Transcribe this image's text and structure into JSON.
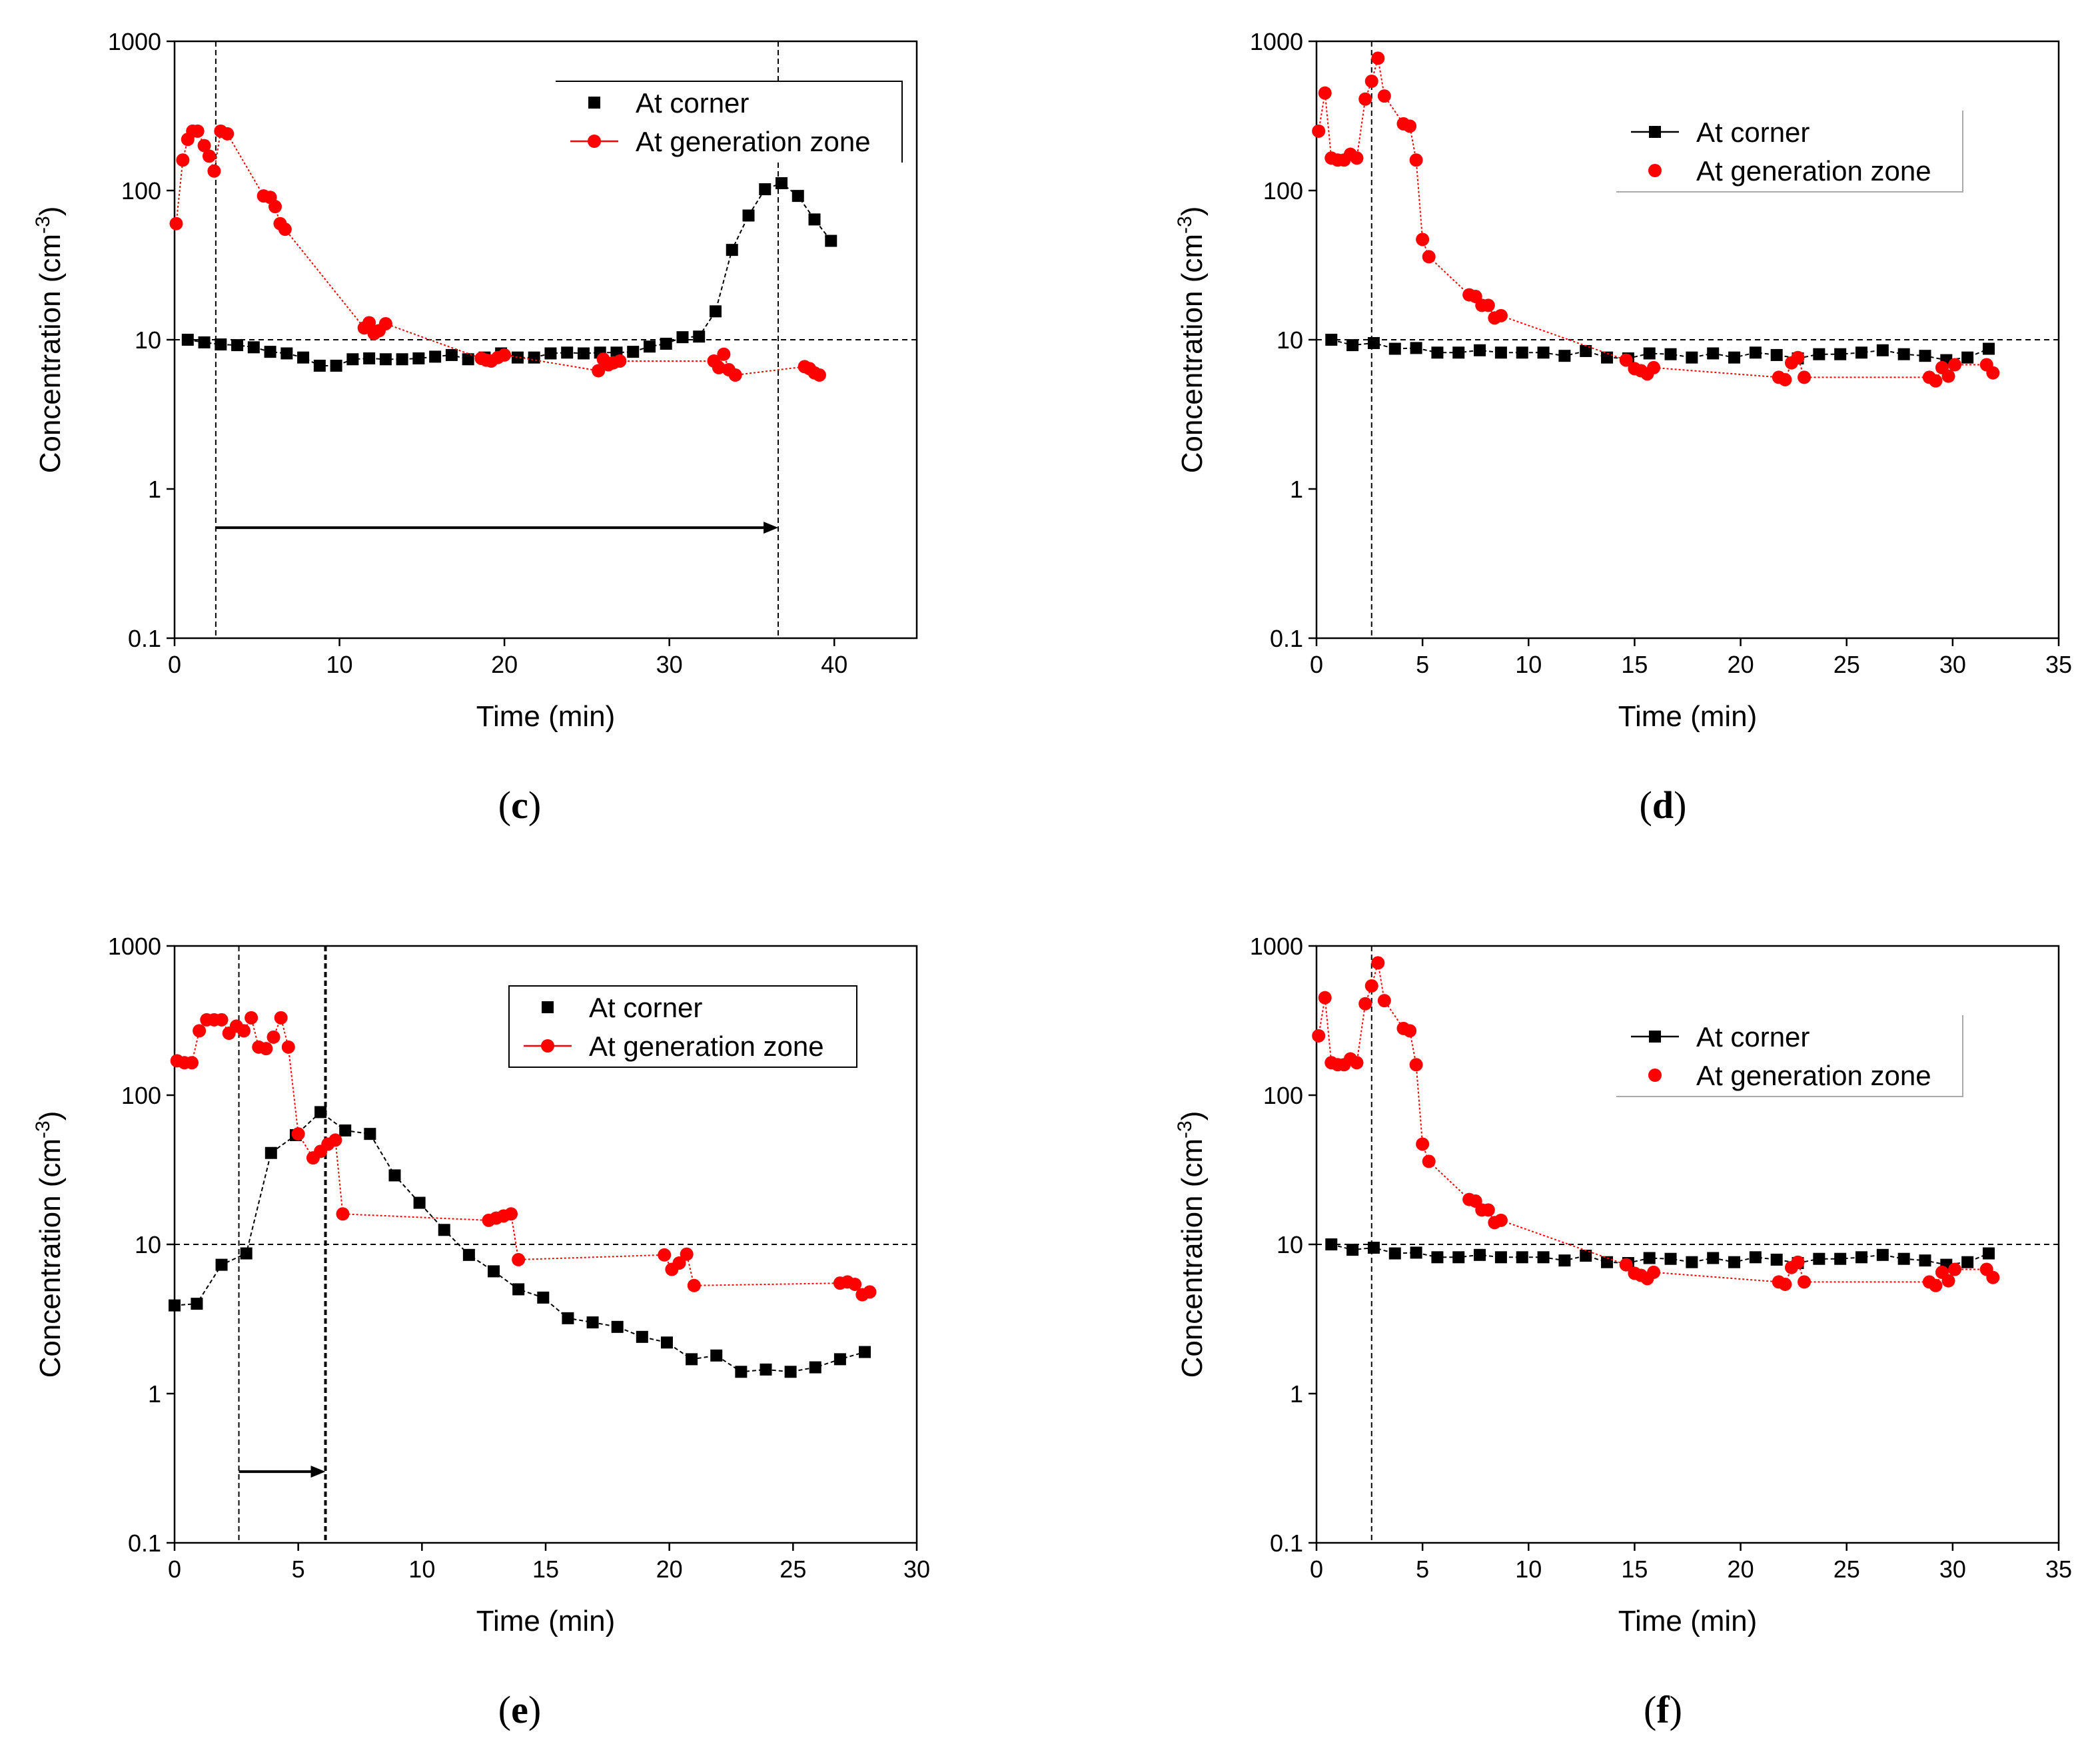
{
  "chart_data": [
    {
      "panel": "c",
      "caption": {
        "open": "(",
        "letter": "c",
        "close": ")"
      },
      "type": "scatter",
      "xlabel": "Time (min)",
      "ylabel": "Concentration (cm",
      "ylabel_sup": "-3",
      "ylabel_close": ")",
      "xlim": [
        0,
        45
      ],
      "ylim": [
        0.1,
        1000
      ],
      "yscale": "log",
      "xticks": [
        0,
        10,
        20,
        30,
        40
      ],
      "yticks": [
        0.1,
        1,
        10,
        100,
        1000
      ],
      "ytick_labels": [
        "0.1",
        "1",
        "10",
        "100",
        "1000"
      ],
      "hline": 10,
      "vlines": [
        2.5,
        36.6
      ],
      "arrow": {
        "x0": 2.5,
        "x1": 36.6,
        "y": 0.55
      },
      "legend": {
        "position": "top-right"
      },
      "series": [
        {
          "name": "At corner",
          "color": "#000000",
          "marker": "square",
          "line": "dash",
          "legend_line": false,
          "x": [
            0.8,
            1.8,
            2.8,
            3.8,
            4.8,
            5.8,
            6.8,
            7.8,
            8.8,
            9.8,
            10.8,
            11.8,
            12.8,
            13.8,
            14.8,
            15.8,
            16.8,
            17.8,
            18.8,
            19.8,
            20.8,
            21.8,
            22.8,
            23.8,
            24.8,
            25.8,
            26.8,
            27.8,
            28.8,
            29.8,
            30.8,
            31.8,
            32.8,
            33.8,
            34.8,
            35.8,
            36.8,
            37.8,
            38.8,
            39.8
          ],
          "y": [
            10,
            9.6,
            9.3,
            9.2,
            8.9,
            8.3,
            8.1,
            7.6,
            6.7,
            6.7,
            7.4,
            7.5,
            7.4,
            7.4,
            7.5,
            7.7,
            7.9,
            7.4,
            7.6,
            8.1,
            7.6,
            7.6,
            8.1,
            8.2,
            8.1,
            8.2,
            8.2,
            8.3,
            9.0,
            9.4,
            10.4,
            10.5,
            15.5,
            40,
            68,
            102,
            112,
            92,
            64,
            46
          ]
        },
        {
          "name": "At generation zone",
          "color": "#ff0000",
          "marker": "circle",
          "line": "dot",
          "legend_line": true,
          "x": [
            0.1,
            0.5,
            0.8,
            1.1,
            1.4,
            1.8,
            2.1,
            2.4,
            2.8,
            3.2,
            5.4,
            5.8,
            6.1,
            6.4,
            6.7,
            11.5,
            11.8,
            12.1,
            12.4,
            12.8,
            18.6,
            18.9,
            19.2,
            19.6,
            20.0,
            25.7,
            26.0,
            26.3,
            26.6,
            27.0,
            32.7,
            33.0,
            33.3,
            33.6,
            34.0,
            38.2,
            38.5,
            38.8,
            39.1
          ],
          "y": [
            60,
            160,
            220,
            250,
            250,
            200,
            170,
            135,
            250,
            240,
            92,
            90,
            78,
            60,
            55,
            12.0,
            13.0,
            11.0,
            11.5,
            12.8,
            7.5,
            7.3,
            7.2,
            7.6,
            7.9,
            6.2,
            7.4,
            6.8,
            7.0,
            7.2,
            7.2,
            6.5,
            8.0,
            6.3,
            5.8,
            6.6,
            6.4,
            6.0,
            5.8
          ]
        }
      ]
    },
    {
      "panel": "d",
      "caption": {
        "open": "(",
        "letter": "d",
        "close": ")"
      },
      "type": "scatter",
      "xlabel": "Time (min)",
      "ylabel": "Concentration (cm",
      "ylabel_sup": "-3",
      "ylabel_close": ")",
      "xlim": [
        0,
        35
      ],
      "ylim": [
        0.1,
        1000
      ],
      "yscale": "log",
      "xticks": [
        0,
        5,
        10,
        15,
        20,
        25,
        30,
        35
      ],
      "yticks": [
        0.1,
        1,
        10,
        100,
        1000
      ],
      "ytick_labels": [
        "0.1",
        "1",
        "10",
        "100",
        "1000"
      ],
      "hline": 10,
      "vlines": [
        2.6
      ],
      "arrow": null,
      "legend": {
        "position": "top-right"
      },
      "series": [
        {
          "name": "At corner",
          "color": "#000000",
          "marker": "square",
          "line": "dash",
          "legend_line": true,
          "x": [
            0.7,
            1.7,
            2.7,
            3.7,
            4.7,
            5.7,
            6.7,
            7.7,
            8.7,
            9.7,
            10.7,
            11.7,
            12.7,
            13.7,
            14.7,
            15.7,
            16.7,
            17.7,
            18.7,
            19.7,
            20.7,
            21.7,
            22.7,
            23.7,
            24.7,
            25.7,
            26.7,
            27.7,
            28.7,
            29.7,
            30.7,
            31.7
          ],
          "y": [
            10,
            9.2,
            9.5,
            8.7,
            8.8,
            8.2,
            8.2,
            8.5,
            8.2,
            8.2,
            8.2,
            7.8,
            8.4,
            7.6,
            7.5,
            8.1,
            8.0,
            7.6,
            8.1,
            7.6,
            8.2,
            7.9,
            7.5,
            8.0,
            8.0,
            8.2,
            8.5,
            8.0,
            7.8,
            7.3,
            7.6,
            8.7
          ]
        },
        {
          "name": "At generation zone",
          "color": "#ff0000",
          "marker": "circle",
          "line": "dot",
          "legend_line": false,
          "x": [
            0.1,
            0.4,
            0.7,
            1.0,
            1.3,
            1.6,
            1.9,
            2.3,
            2.6,
            2.9,
            3.2,
            4.1,
            4.4,
            4.7,
            5.0,
            5.3,
            7.2,
            7.5,
            7.8,
            8.1,
            8.4,
            8.7,
            14.6,
            15.0,
            15.3,
            15.6,
            15.9,
            21.8,
            22.1,
            22.4,
            22.7,
            23.0,
            28.9,
            29.2,
            29.5,
            29.8,
            30.1,
            31.6,
            31.9
          ],
          "y": [
            250,
            450,
            165,
            160,
            160,
            175,
            165,
            410,
            540,
            770,
            430,
            280,
            270,
            160,
            47,
            36,
            20,
            19.5,
            17,
            17,
            14,
            14.5,
            7.3,
            6.4,
            6.2,
            5.9,
            6.5,
            5.6,
            5.4,
            7.0,
            7.6,
            5.6,
            5.6,
            5.3,
            6.5,
            5.7,
            6.8,
            6.8,
            6.0
          ]
        }
      ]
    },
    {
      "panel": "e",
      "caption": {
        "open": "(",
        "letter": "e",
        "close": ")"
      },
      "type": "scatter",
      "xlabel": "Time (min)",
      "ylabel": "Concentration (cm",
      "ylabel_sup": "-3",
      "ylabel_close": ")",
      "xlim": [
        0,
        30
      ],
      "ylim": [
        0.1,
        1000
      ],
      "yscale": "log",
      "xticks": [
        0,
        5,
        10,
        15,
        20,
        25,
        30
      ],
      "yticks": [
        0.1,
        1,
        10,
        100,
        1000
      ],
      "ytick_labels": [
        "0.1",
        "1",
        "10",
        "100",
        "1000"
      ],
      "hline": 10,
      "vlines": [
        2.6,
        6.1
      ],
      "arrow": {
        "x0": 2.6,
        "x1": 6.1,
        "y": 0.3
      },
      "legend": {
        "position": "top-right"
      },
      "series": [
        {
          "name": "At corner",
          "color": "#000000",
          "marker": "square",
          "line": "dash",
          "legend_line": false,
          "x": [
            0,
            0.9,
            1.9,
            2.9,
            3.9,
            4.9,
            5.9,
            6.9,
            7.9,
            8.9,
            9.9,
            10.9,
            11.9,
            12.9,
            13.9,
            14.9,
            15.9,
            16.9,
            17.9,
            18.9,
            19.9,
            20.9,
            21.9,
            22.9,
            23.9,
            24.9,
            25.9,
            26.9,
            27.9
          ],
          "y": [
            3.9,
            4.0,
            7.3,
            8.7,
            41,
            54,
            77,
            58,
            55,
            29,
            19,
            12.5,
            8.5,
            6.6,
            5.0,
            4.4,
            3.2,
            3.0,
            2.8,
            2.4,
            2.2,
            1.7,
            1.8,
            1.4,
            1.45,
            1.4,
            1.5,
            1.7,
            1.9
          ]
        },
        {
          "name": "At generation zone",
          "color": "#ff0000",
          "marker": "circle",
          "line": "dot",
          "legend_line": true,
          "x": [
            0.1,
            0.4,
            0.7,
            1.0,
            1.3,
            1.6,
            1.9,
            2.2,
            2.5,
            2.8,
            3.1,
            3.4,
            3.7,
            4.0,
            4.3,
            4.6,
            5.0,
            5.6,
            5.9,
            6.2,
            6.5,
            6.8,
            12.7,
            13.0,
            13.3,
            13.6,
            13.9,
            19.8,
            20.1,
            20.4,
            20.7,
            21.0,
            26.9,
            27.2,
            27.5,
            27.8,
            28.1
          ],
          "y": [
            170,
            165,
            165,
            270,
            320,
            320,
            320,
            260,
            290,
            270,
            330,
            210,
            205,
            245,
            330,
            210,
            55,
            38,
            42,
            47,
            50,
            16,
            14.5,
            15,
            15.5,
            16,
            7.9,
            8.5,
            6.8,
            7.5,
            8.6,
            5.3,
            5.5,
            5.6,
            5.4,
            4.6,
            4.8
          ]
        }
      ]
    },
    {
      "panel": "f",
      "caption": {
        "open": "(",
        "letter": "f",
        "close": ")"
      },
      "type": "scatter",
      "xlabel": "Time (min)",
      "ylabel": "Concentration (cm",
      "ylabel_sup": "-3",
      "ylabel_close": ")",
      "xlim": [
        0,
        35
      ],
      "ylim": [
        0.1,
        1000
      ],
      "yscale": "log",
      "xticks": [
        0,
        5,
        10,
        15,
        20,
        25,
        30,
        35
      ],
      "yticks": [
        0.1,
        1,
        10,
        100,
        1000
      ],
      "ytick_labels": [
        "0.1",
        "1",
        "10",
        "100",
        "1000"
      ],
      "hline": 10,
      "vlines": [
        2.6
      ],
      "arrow": null,
      "legend": {
        "position": "top-right"
      },
      "series": [
        {
          "name": "At corner",
          "color": "#000000",
          "marker": "square",
          "line": "dash",
          "legend_line": true,
          "x": [
            0.7,
            1.7,
            2.7,
            3.7,
            4.7,
            5.7,
            6.7,
            7.7,
            8.7,
            9.7,
            10.7,
            11.7,
            12.7,
            13.7,
            14.7,
            15.7,
            16.7,
            17.7,
            18.7,
            19.7,
            20.7,
            21.7,
            22.7,
            23.7,
            24.7,
            25.7,
            26.7,
            27.7,
            28.7,
            29.7,
            30.7,
            31.7
          ],
          "y": [
            10,
            9.2,
            9.5,
            8.7,
            8.8,
            8.2,
            8.2,
            8.5,
            8.2,
            8.2,
            8.2,
            7.8,
            8.4,
            7.6,
            7.5,
            8.1,
            8.0,
            7.6,
            8.1,
            7.6,
            8.2,
            7.9,
            7.5,
            8.0,
            8.0,
            8.2,
            8.5,
            8.0,
            7.8,
            7.3,
            7.6,
            8.7
          ]
        },
        {
          "name": "At generation zone",
          "color": "#ff0000",
          "marker": "circle",
          "line": "dot",
          "legend_line": false,
          "x": [
            0.1,
            0.4,
            0.7,
            1.0,
            1.3,
            1.6,
            1.9,
            2.3,
            2.6,
            2.9,
            3.2,
            4.1,
            4.4,
            4.7,
            5.0,
            5.3,
            7.2,
            7.5,
            7.8,
            8.1,
            8.4,
            8.7,
            14.6,
            15.0,
            15.3,
            15.6,
            15.9,
            21.8,
            22.1,
            22.4,
            22.7,
            23.0,
            28.9,
            29.2,
            29.5,
            29.8,
            30.1,
            31.6,
            31.9
          ],
          "y": [
            250,
            450,
            165,
            160,
            160,
            175,
            165,
            410,
            540,
            770,
            430,
            280,
            270,
            160,
            47,
            36,
            20,
            19.5,
            17,
            17,
            14,
            14.5,
            7.3,
            6.4,
            6.2,
            5.9,
            6.5,
            5.6,
            5.4,
            7.0,
            7.6,
            5.6,
            5.6,
            5.3,
            6.5,
            5.7,
            6.8,
            6.8,
            6.0
          ]
        }
      ]
    }
  ]
}
